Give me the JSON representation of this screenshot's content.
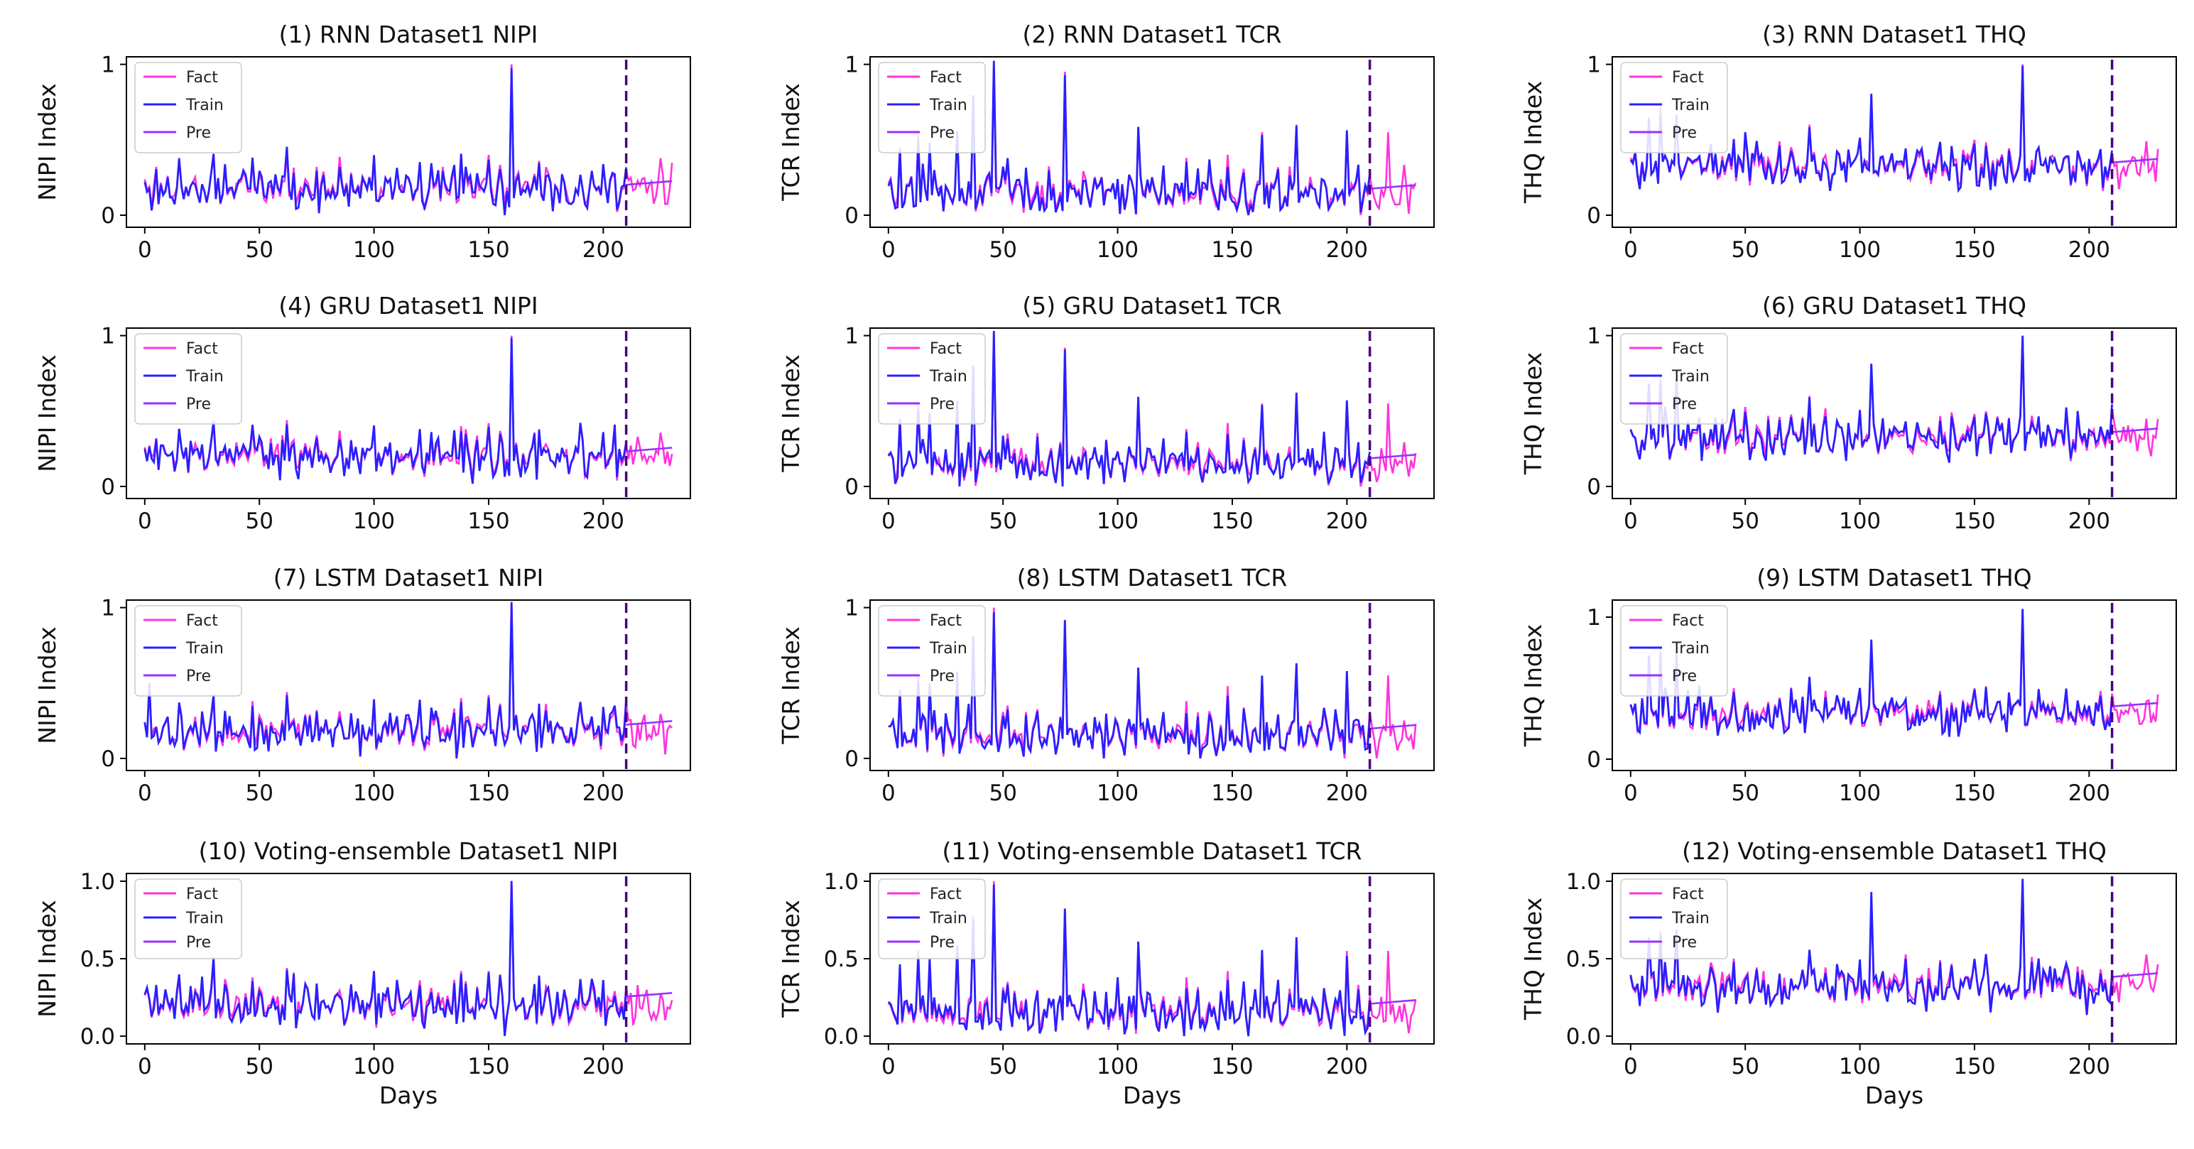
{
  "figure": {
    "dataset": "Dataset1",
    "models": [
      "RNN",
      "GRU",
      "LSTM",
      "Voting-ensemble"
    ],
    "metrics": [
      "NIPI",
      "TCR",
      "THQ"
    ],
    "legend": [
      "Fact",
      "Train",
      "Pre"
    ],
    "colors": {
      "Fact": "#ff33dd",
      "Train": "#2a1fff",
      "Pre": "#9b30ff",
      "divider": "#4b0082"
    },
    "xlabel": "Days",
    "split_day": 210,
    "total_days": 230,
    "x_ticks": [
      0,
      50,
      100,
      150,
      200
    ],
    "y_ticks_short": [
      "0",
      "1"
    ],
    "y_ticks_long": [
      "0.0",
      "0.5",
      "1.0"
    ]
  },
  "chart_data": [
    {
      "type": "line",
      "title": "(1) RNN Dataset1 NIPI",
      "ylabel": "NIPI Index",
      "model": "RNN",
      "metric": "NIPI",
      "yticks": [
        0,
        1
      ],
      "xticks": [
        0,
        50,
        100,
        150,
        200
      ],
      "xlim": [
        -8,
        238
      ],
      "ylim": [
        -0.08,
        1.05
      ],
      "divider_x": 210,
      "series_names": [
        "Fact",
        "Train",
        "Pre"
      ],
      "baseline": 0.18,
      "spikes": [
        [
          5,
          0.32
        ],
        [
          15,
          0.38
        ],
        [
          30,
          0.4
        ],
        [
          47,
          0.36
        ],
        [
          62,
          0.42
        ],
        [
          75,
          0.32
        ],
        [
          100,
          0.4
        ],
        [
          120,
          0.34
        ],
        [
          138,
          0.38
        ],
        [
          150,
          0.4
        ],
        [
          160,
          1.0
        ],
        [
          172,
          0.36
        ],
        [
          185,
          0.08
        ]
      ],
      "xlabel": ""
    },
    {
      "type": "line",
      "title": "(2) RNN Dataset1 TCR",
      "ylabel": "TCR Index",
      "model": "RNN",
      "metric": "TCR",
      "yticks": [
        0,
        1
      ],
      "xticks": [
        0,
        50,
        100,
        150,
        200
      ],
      "xlim": [
        -8,
        238
      ],
      "ylim": [
        -0.08,
        1.05
      ],
      "divider_x": 210,
      "series_names": [
        "Fact",
        "Train",
        "Pre"
      ],
      "baseline": 0.15,
      "spikes": [
        [
          5,
          0.45
        ],
        [
          13,
          0.55
        ],
        [
          18,
          0.48
        ],
        [
          30,
          0.55
        ],
        [
          37,
          0.78
        ],
        [
          46,
          1.0
        ],
        [
          52,
          0.35
        ],
        [
          77,
          0.95
        ],
        [
          109,
          0.58
        ],
        [
          130,
          0.38
        ],
        [
          148,
          0.4
        ],
        [
          163,
          0.55
        ],
        [
          178,
          0.6
        ],
        [
          200,
          0.55
        ],
        [
          218,
          0.55
        ]
      ],
      "xlabel": ""
    },
    {
      "type": "line",
      "title": "(3) RNN Dataset1 THQ",
      "ylabel": "THQ Index",
      "model": "RNN",
      "metric": "THQ",
      "yticks": [
        0,
        1
      ],
      "xticks": [
        0,
        50,
        100,
        150,
        200
      ],
      "xlim": [
        -8,
        238
      ],
      "ylim": [
        -0.08,
        1.05
      ],
      "divider_x": 210,
      "series_names": [
        "Fact",
        "Train",
        "Pre"
      ],
      "baseline": 0.32,
      "spikes": [
        [
          8,
          0.65
        ],
        [
          13,
          0.72
        ],
        [
          20,
          0.66
        ],
        [
          45,
          0.48
        ],
        [
          78,
          0.6
        ],
        [
          105,
          0.8
        ],
        [
          150,
          0.5
        ],
        [
          171,
          1.0
        ],
        [
          178,
          0.45
        ]
      ],
      "xlabel": ""
    },
    {
      "type": "line",
      "title": "(4) GRU Dataset1 NIPI",
      "ylabel": "NIPI Index",
      "model": "GRU",
      "metric": "NIPI",
      "yticks": [
        0,
        1
      ],
      "xticks": [
        0,
        50,
        100,
        150,
        200
      ],
      "xlim": [
        -8,
        238
      ],
      "ylim": [
        -0.08,
        1.05
      ],
      "divider_x": 210,
      "series_names": [
        "Fact",
        "Train",
        "Pre"
      ],
      "baseline": 0.2,
      "spikes": [
        [
          5,
          0.32
        ],
        [
          15,
          0.38
        ],
        [
          30,
          0.42
        ],
        [
          47,
          0.38
        ],
        [
          62,
          0.44
        ],
        [
          75,
          0.34
        ],
        [
          100,
          0.4
        ],
        [
          120,
          0.36
        ],
        [
          138,
          0.4
        ],
        [
          150,
          0.42
        ],
        [
          160,
          1.0
        ],
        [
          172,
          0.38
        ],
        [
          185,
          0.08
        ]
      ],
      "xlabel": ""
    },
    {
      "type": "line",
      "title": "(5) GRU Dataset1 TCR",
      "ylabel": "TCR Index",
      "model": "GRU",
      "metric": "TCR",
      "yticks": [
        0,
        1
      ],
      "xticks": [
        0,
        50,
        100,
        150,
        200
      ],
      "xlim": [
        -8,
        238
      ],
      "ylim": [
        -0.08,
        1.05
      ],
      "divider_x": 210,
      "series_names": [
        "Fact",
        "Train",
        "Pre"
      ],
      "baseline": 0.15,
      "spikes": [
        [
          5,
          0.45
        ],
        [
          13,
          0.55
        ],
        [
          18,
          0.48
        ],
        [
          30,
          0.55
        ],
        [
          37,
          0.78
        ],
        [
          46,
          1.0
        ],
        [
          52,
          0.35
        ],
        [
          77,
          0.92
        ],
        [
          109,
          0.58
        ],
        [
          130,
          0.38
        ],
        [
          148,
          0.42
        ],
        [
          163,
          0.55
        ],
        [
          178,
          0.62
        ],
        [
          200,
          0.55
        ],
        [
          218,
          0.55
        ]
      ],
      "xlabel": ""
    },
    {
      "type": "line",
      "title": "(6) GRU Dataset1 THQ",
      "ylabel": "THQ Index",
      "model": "GRU",
      "metric": "THQ",
      "yticks": [
        0,
        1
      ],
      "xticks": [
        0,
        50,
        100,
        150,
        200
      ],
      "xlim": [
        -8,
        238
      ],
      "ylim": [
        -0.08,
        1.05
      ],
      "divider_x": 210,
      "series_names": [
        "Fact",
        "Train",
        "Pre"
      ],
      "baseline": 0.32,
      "spikes": [
        [
          8,
          0.68
        ],
        [
          13,
          0.74
        ],
        [
          20,
          0.7
        ],
        [
          45,
          0.48
        ],
        [
          78,
          0.6
        ],
        [
          105,
          0.8
        ],
        [
          150,
          0.48
        ],
        [
          171,
          1.0
        ],
        [
          178,
          0.46
        ]
      ],
      "xlabel": ""
    },
    {
      "type": "line",
      "title": "(7) LSTM Dataset1 NIPI",
      "ylabel": "NIPI Index",
      "model": "LSTM",
      "metric": "NIPI",
      "yticks": [
        0,
        1
      ],
      "xticks": [
        0,
        50,
        100,
        150,
        200
      ],
      "xlim": [
        -8,
        238
      ],
      "ylim": [
        -0.08,
        1.05
      ],
      "divider_x": 210,
      "series_names": [
        "Fact",
        "Train",
        "Pre"
      ],
      "baseline": 0.18,
      "spikes": [
        [
          2,
          0.5
        ],
        [
          15,
          0.36
        ],
        [
          30,
          0.4
        ],
        [
          47,
          0.38
        ],
        [
          62,
          0.44
        ],
        [
          75,
          0.32
        ],
        [
          100,
          0.38
        ],
        [
          120,
          0.36
        ],
        [
          138,
          0.4
        ],
        [
          150,
          0.42
        ],
        [
          160,
          1.04
        ],
        [
          172,
          0.36
        ],
        [
          185,
          0.1
        ]
      ],
      "xlabel": ""
    },
    {
      "type": "line",
      "title": "(8) LSTM Dataset1 TCR",
      "ylabel": "TCR Index",
      "model": "LSTM",
      "metric": "TCR",
      "yticks": [
        0,
        1
      ],
      "xticks": [
        0,
        50,
        100,
        150,
        200
      ],
      "xlim": [
        -8,
        238
      ],
      "ylim": [
        -0.08,
        1.05
      ],
      "divider_x": 210,
      "series_names": [
        "Fact",
        "Train",
        "Pre"
      ],
      "baseline": 0.15,
      "spikes": [
        [
          5,
          0.45
        ],
        [
          13,
          0.55
        ],
        [
          18,
          0.48
        ],
        [
          30,
          0.55
        ],
        [
          37,
          0.78
        ],
        [
          46,
          1.0
        ],
        [
          52,
          0.35
        ],
        [
          77,
          0.92
        ],
        [
          109,
          0.58
        ],
        [
          130,
          0.38
        ],
        [
          148,
          0.48
        ],
        [
          163,
          0.55
        ],
        [
          178,
          0.62
        ],
        [
          200,
          0.55
        ],
        [
          218,
          0.55
        ]
      ],
      "xlabel": ""
    },
    {
      "type": "line",
      "title": "(9) LSTM Dataset1 THQ",
      "ylabel": "THQ Index",
      "model": "LSTM",
      "metric": "THQ",
      "yticks": [
        0,
        1
      ],
      "xticks": [
        0,
        50,
        100,
        150,
        200
      ],
      "xlim": [
        -8,
        238
      ],
      "ylim": [
        -0.08,
        1.12
      ],
      "divider_x": 210,
      "series_names": [
        "Fact",
        "Train",
        "Pre"
      ],
      "baseline": 0.32,
      "spikes": [
        [
          8,
          0.72
        ],
        [
          13,
          0.78
        ],
        [
          20,
          0.72
        ],
        [
          45,
          0.5
        ],
        [
          78,
          0.58
        ],
        [
          105,
          0.82
        ],
        [
          150,
          0.5
        ],
        [
          171,
          1.05
        ],
        [
          178,
          0.48
        ]
      ],
      "xlabel": ""
    },
    {
      "type": "line",
      "title": "(10) Voting-ensemble Dataset1 NIPI",
      "ylabel": "NIPI Index",
      "model": "Voting-ensemble",
      "metric": "NIPI",
      "yticks": [
        0,
        0.5,
        1
      ],
      "ytick_labels": [
        "0.0",
        "0.5",
        "1.0"
      ],
      "xticks": [
        0,
        50,
        100,
        150,
        200
      ],
      "xlim": [
        -8,
        238
      ],
      "ylim": [
        -0.05,
        1.05
      ],
      "divider_x": 210,
      "series_names": [
        "Fact",
        "Train",
        "Pre"
      ],
      "baseline": 0.2,
      "spikes": [
        [
          5,
          0.32
        ],
        [
          15,
          0.38
        ],
        [
          30,
          0.48
        ],
        [
          47,
          0.38
        ],
        [
          62,
          0.44
        ],
        [
          75,
          0.34
        ],
        [
          100,
          0.4
        ],
        [
          120,
          0.36
        ],
        [
          138,
          0.42
        ],
        [
          150,
          0.42
        ],
        [
          160,
          1.0
        ],
        [
          172,
          0.38
        ],
        [
          185,
          0.08
        ]
      ],
      "xlabel": "Days"
    },
    {
      "type": "line",
      "title": "(11) Voting-ensemble Dataset1 TCR",
      "ylabel": "TCR Index",
      "model": "Voting-ensemble",
      "metric": "TCR",
      "yticks": [
        0,
        0.5,
        1
      ],
      "ytick_labels": [
        "0.0",
        "0.5",
        "1.0"
      ],
      "xticks": [
        0,
        50,
        100,
        150,
        200
      ],
      "xlim": [
        -8,
        238
      ],
      "ylim": [
        -0.05,
        1.05
      ],
      "divider_x": 210,
      "series_names": [
        "Fact",
        "Train",
        "Pre"
      ],
      "baseline": 0.15,
      "spikes": [
        [
          5,
          0.45
        ],
        [
          13,
          0.55
        ],
        [
          18,
          0.48
        ],
        [
          30,
          0.55
        ],
        [
          37,
          0.78
        ],
        [
          46,
          1.0
        ],
        [
          52,
          0.35
        ],
        [
          77,
          0.82
        ],
        [
          109,
          0.58
        ],
        [
          130,
          0.38
        ],
        [
          148,
          0.42
        ],
        [
          163,
          0.55
        ],
        [
          178,
          0.62
        ],
        [
          200,
          0.55
        ],
        [
          218,
          0.55
        ]
      ],
      "xlabel": "Days"
    },
    {
      "type": "line",
      "title": "(12) Voting-ensemble Dataset1 THQ",
      "ylabel": "THQ Index",
      "model": "Voting-ensemble",
      "metric": "THQ",
      "yticks": [
        0,
        0.5,
        1
      ],
      "ytick_labels": [
        "0.0",
        "0.5",
        "1.0"
      ],
      "xticks": [
        0,
        50,
        100,
        150,
        200
      ],
      "xlim": [
        -8,
        238
      ],
      "ylim": [
        -0.05,
        1.05
      ],
      "divider_x": 210,
      "series_names": [
        "Fact",
        "Train",
        "Pre"
      ],
      "baseline": 0.32,
      "spikes": [
        [
          8,
          0.62
        ],
        [
          13,
          0.68
        ],
        [
          20,
          0.66
        ],
        [
          45,
          0.5
        ],
        [
          78,
          0.55
        ],
        [
          105,
          0.9
        ],
        [
          150,
          0.5
        ],
        [
          171,
          1.0
        ],
        [
          178,
          0.48
        ]
      ],
      "xlabel": "Days"
    }
  ]
}
